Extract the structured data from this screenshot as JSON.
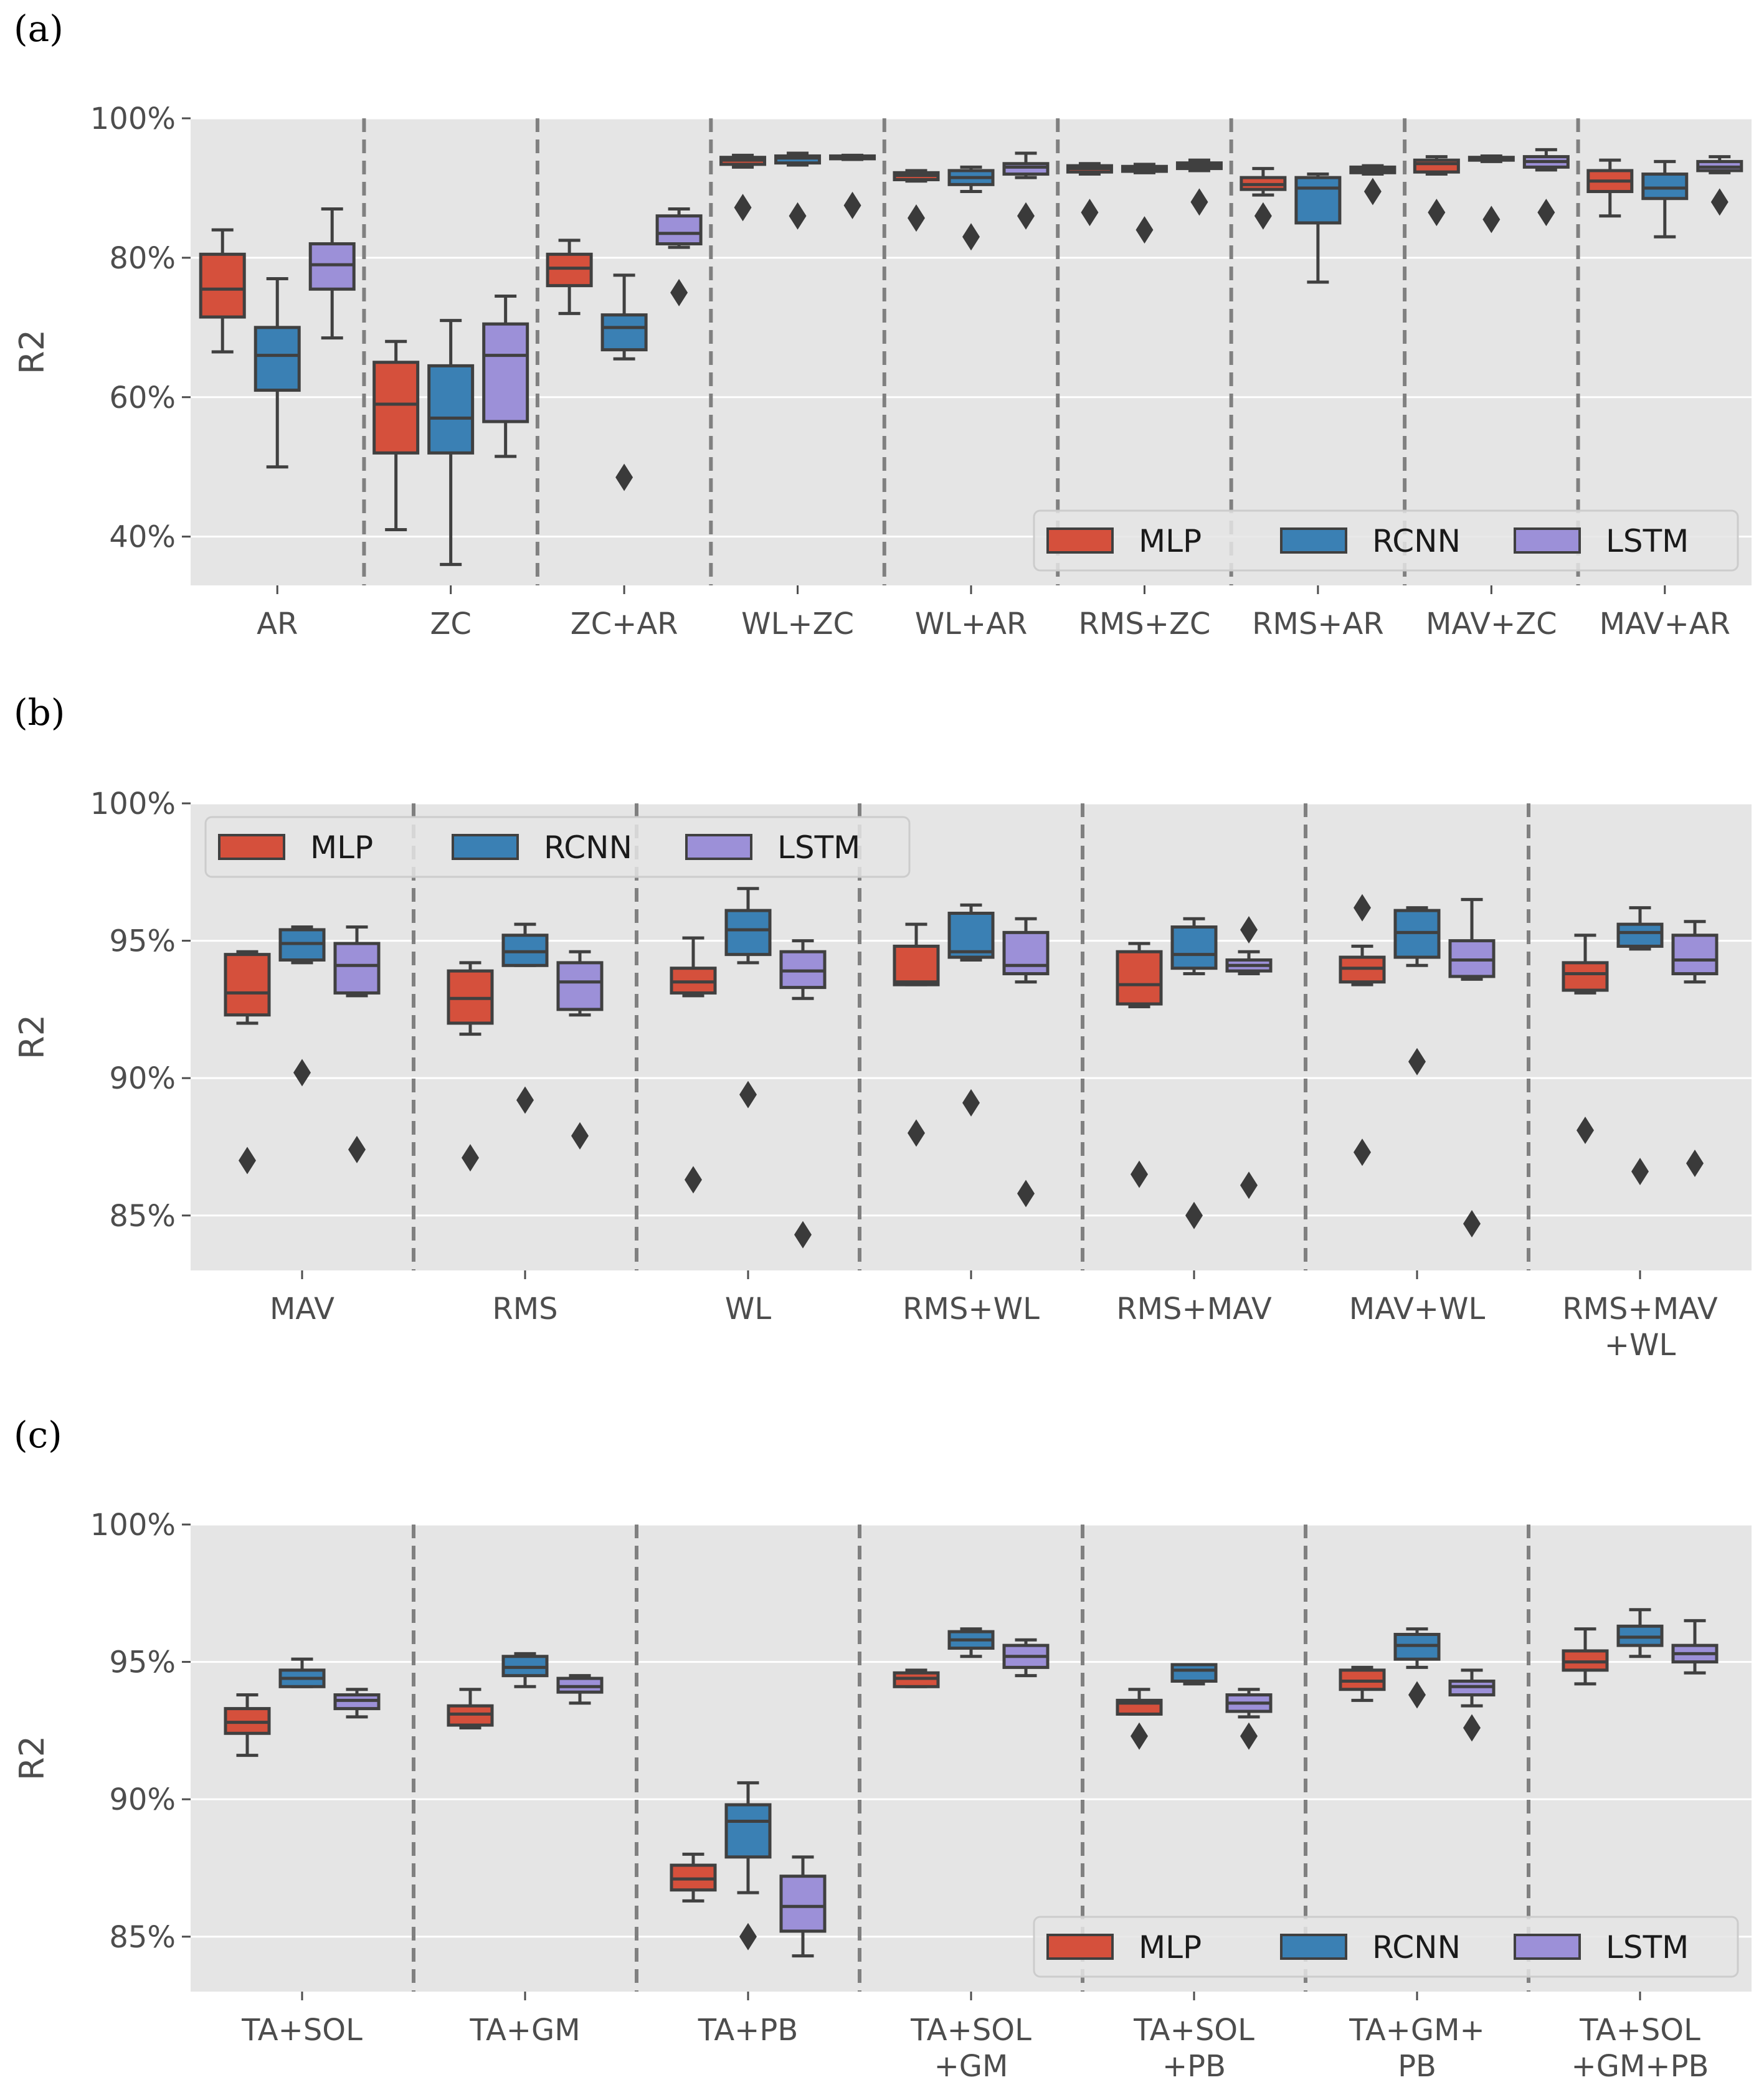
{
  "colors": {
    "MLP": "#d5503c",
    "RCNN": "#3a80b4",
    "LSTM": "#9c90d8",
    "background": "#e5e5e5",
    "grid": "#ffffff",
    "whisker": "#404040",
    "separator": "#808080"
  },
  "chart_data": [
    {
      "panel": "(a)",
      "type": "box",
      "ylabel": "R2",
      "ylim": [
        33,
        100
      ],
      "yticks": [
        40,
        60,
        80,
        100
      ],
      "ytick_labels": [
        "40%",
        "60%",
        "80%",
        "100%"
      ],
      "legend": [
        "MLP",
        "RCNN",
        "LSTM"
      ],
      "legend_position": "lower-right",
      "categories": [
        "AR",
        "ZC",
        "ZC+AR",
        "WL+ZC",
        "WL+AR",
        "RMS+ZC",
        "RMS+AR",
        "MAV+ZC",
        "MAV+AR"
      ],
      "series": [
        {
          "name": "MLP",
          "boxes": [
            {
              "whislo": 66.5,
              "q1": 71.5,
              "med": 75.5,
              "q3": 80.5,
              "whishi": 84,
              "fliers": []
            },
            {
              "whislo": 41,
              "q1": 52,
              "med": 59,
              "q3": 65,
              "whishi": 68,
              "fliers": []
            },
            {
              "whislo": 72,
              "q1": 76,
              "med": 78.5,
              "q3": 80.5,
              "whishi": 82.5,
              "fliers": []
            },
            {
              "whislo": 93,
              "q1": 93.4,
              "med": 94,
              "q3": 94.4,
              "whishi": 94.7,
              "fliers": [
                87.2
              ]
            },
            {
              "whislo": 91,
              "q1": 91.2,
              "med": 91.8,
              "q3": 92.2,
              "whishi": 92.5,
              "fliers": [
                85.7
              ]
            },
            {
              "whislo": 92,
              "q1": 92.3,
              "med": 92.8,
              "q3": 93.2,
              "whishi": 93.5,
              "fliers": [
                86.5
              ]
            },
            {
              "whislo": 89,
              "q1": 89.8,
              "med": 90.5,
              "q3": 91.5,
              "whishi": 92.8,
              "fliers": [
                86
              ]
            },
            {
              "whislo": 92,
              "q1": 92.3,
              "med": 93.5,
              "q3": 94,
              "whishi": 94.5,
              "fliers": [
                86.5
              ]
            },
            {
              "whislo": 86,
              "q1": 89.5,
              "med": 91,
              "q3": 92.5,
              "whishi": 94,
              "fliers": []
            }
          ]
        },
        {
          "name": "RCNN",
          "boxes": [
            {
              "whislo": 50,
              "q1": 61,
              "med": 66,
              "q3": 70,
              "whishi": 77,
              "fliers": []
            },
            {
              "whislo": 36,
              "q1": 52,
              "med": 57,
              "q3": 64.5,
              "whishi": 71,
              "fliers": []
            },
            {
              "whislo": 65.5,
              "q1": 66.8,
              "med": 70,
              "q3": 71.8,
              "whishi": 77.5,
              "fliers": [
                48.5
              ]
            },
            {
              "whislo": 93.3,
              "q1": 93.6,
              "med": 94.3,
              "q3": 94.6,
              "whishi": 95,
              "fliers": [
                86
              ]
            },
            {
              "whislo": 89.5,
              "q1": 90.5,
              "med": 91.5,
              "q3": 92.5,
              "whishi": 93,
              "fliers": [
                83
              ]
            },
            {
              "whislo": 92.2,
              "q1": 92.4,
              "med": 92.8,
              "q3": 93.1,
              "whishi": 93.4,
              "fliers": [
                84
              ]
            },
            {
              "whislo": 76.5,
              "q1": 85,
              "med": 90,
              "q3": 91.5,
              "whishi": 92,
              "fliers": []
            },
            {
              "whislo": 93.8,
              "q1": 94,
              "med": 94.2,
              "q3": 94.4,
              "whishi": 94.6,
              "fliers": [
                85.5
              ]
            },
            {
              "whislo": 83,
              "q1": 88.5,
              "med": 90,
              "q3": 92,
              "whishi": 93.8,
              "fliers": []
            }
          ]
        },
        {
          "name": "LSTM",
          "boxes": [
            {
              "whislo": 68.5,
              "q1": 75.5,
              "med": 79,
              "q3": 82,
              "whishi": 87,
              "fliers": []
            },
            {
              "whislo": 51.5,
              "q1": 56.5,
              "med": 66,
              "q3": 70.5,
              "whishi": 74.5,
              "fliers": []
            },
            {
              "whislo": 81.5,
              "q1": 82,
              "med": 83.5,
              "q3": 86,
              "whishi": 87,
              "fliers": [
                75
              ]
            },
            {
              "whislo": 94.1,
              "q1": 94.2,
              "med": 94.4,
              "q3": 94.6,
              "whishi": 94.7,
              "fliers": [
                87.5
              ]
            },
            {
              "whislo": 91.5,
              "q1": 92,
              "med": 93,
              "q3": 93.5,
              "whishi": 95,
              "fliers": [
                86
              ]
            },
            {
              "whislo": 92.5,
              "q1": 92.8,
              "med": 93.2,
              "q3": 93.6,
              "whishi": 94,
              "fliers": [
                88
              ]
            },
            {
              "whislo": 92,
              "q1": 92.2,
              "med": 92.6,
              "q3": 93,
              "whishi": 93.2,
              "fliers": [
                89.5
              ]
            },
            {
              "whislo": 92.6,
              "q1": 93,
              "med": 93.8,
              "q3": 94.5,
              "whishi": 95.5,
              "fliers": [
                86.5
              ]
            },
            {
              "whislo": 92.2,
              "q1": 92.5,
              "med": 93,
              "q3": 93.8,
              "whishi": 94.5,
              "fliers": [
                88
              ]
            }
          ]
        }
      ]
    },
    {
      "panel": "(b)",
      "type": "box",
      "ylabel": "R2",
      "ylim": [
        83,
        100
      ],
      "yticks": [
        85,
        90,
        95,
        100
      ],
      "ytick_labels": [
        "85%",
        "90%",
        "95%",
        "100%"
      ],
      "legend": [
        "MLP",
        "RCNN",
        "LSTM"
      ],
      "legend_position": "upper-left",
      "categories": [
        "MAV",
        "RMS",
        "WL",
        "RMS+WL",
        "RMS+MAV",
        "MAV+WL",
        "RMS+MAV\n+WL"
      ],
      "series": [
        {
          "name": "MLP",
          "boxes": [
            {
              "whislo": 92,
              "q1": 92.3,
              "med": 93.1,
              "q3": 94.5,
              "whishi": 94.6,
              "fliers": [
                87
              ]
            },
            {
              "whislo": 91.6,
              "q1": 92,
              "med": 92.9,
              "q3": 93.9,
              "whishi": 94.2,
              "fliers": [
                87.1
              ]
            },
            {
              "whislo": 93,
              "q1": 93.1,
              "med": 93.5,
              "q3": 94,
              "whishi": 95.1,
              "fliers": [
                86.3
              ]
            },
            {
              "whislo": 93.4,
              "q1": 93.4,
              "med": 93.5,
              "q3": 94.8,
              "whishi": 95.6,
              "fliers": [
                88
              ]
            },
            {
              "whislo": 92.6,
              "q1": 92.7,
              "med": 93.4,
              "q3": 94.6,
              "whishi": 94.9,
              "fliers": [
                86.5
              ]
            },
            {
              "whislo": 93.4,
              "q1": 93.5,
              "med": 94,
              "q3": 94.4,
              "whishi": 94.8,
              "fliers": [
                96.2,
                87.3
              ]
            },
            {
              "whislo": 93.1,
              "q1": 93.2,
              "med": 93.8,
              "q3": 94.2,
              "whishi": 95.2,
              "fliers": [
                88.1
              ]
            }
          ]
        },
        {
          "name": "RCNN",
          "boxes": [
            {
              "whislo": 94.2,
              "q1": 94.3,
              "med": 94.9,
              "q3": 95.4,
              "whishi": 95.5,
              "fliers": [
                90.2
              ]
            },
            {
              "whislo": 94.1,
              "q1": 94.1,
              "med": 94.6,
              "q3": 95.2,
              "whishi": 95.6,
              "fliers": [
                89.2
              ]
            },
            {
              "whislo": 94.2,
              "q1": 94.5,
              "med": 95.4,
              "q3": 96.1,
              "whishi": 96.9,
              "fliers": [
                89.4
              ]
            },
            {
              "whislo": 94.3,
              "q1": 94.4,
              "med": 94.6,
              "q3": 96,
              "whishi": 96.3,
              "fliers": [
                89.1
              ]
            },
            {
              "whislo": 93.8,
              "q1": 94,
              "med": 94.5,
              "q3": 95.5,
              "whishi": 95.8,
              "fliers": [
                85
              ]
            },
            {
              "whislo": 94.1,
              "q1": 94.4,
              "med": 95.3,
              "q3": 96.1,
              "whishi": 96.2,
              "fliers": [
                90.6
              ]
            },
            {
              "whislo": 94.7,
              "q1": 94.8,
              "med": 95.3,
              "q3": 95.6,
              "whishi": 96.2,
              "fliers": [
                86.6
              ]
            }
          ]
        },
        {
          "name": "LSTM",
          "boxes": [
            {
              "whislo": 93,
              "q1": 93.1,
              "med": 94.1,
              "q3": 94.9,
              "whishi": 95.5,
              "fliers": [
                87.4
              ]
            },
            {
              "whislo": 92.3,
              "q1": 92.5,
              "med": 93.5,
              "q3": 94.2,
              "whishi": 94.6,
              "fliers": [
                87.9
              ]
            },
            {
              "whislo": 92.9,
              "q1": 93.3,
              "med": 93.9,
              "q3": 94.6,
              "whishi": 95,
              "fliers": [
                84.3
              ]
            },
            {
              "whislo": 93.5,
              "q1": 93.8,
              "med": 94.1,
              "q3": 95.3,
              "whishi": 95.8,
              "fliers": [
                85.8
              ]
            },
            {
              "whislo": 93.8,
              "q1": 93.9,
              "med": 94.1,
              "q3": 94.3,
              "whishi": 94.6,
              "fliers": [
                95.4,
                86.1
              ]
            },
            {
              "whislo": 93.6,
              "q1": 93.7,
              "med": 94.3,
              "q3": 95,
              "whishi": 96.5,
              "fliers": [
                84.7
              ]
            },
            {
              "whislo": 93.5,
              "q1": 93.8,
              "med": 94.3,
              "q3": 95.2,
              "whishi": 95.7,
              "fliers": [
                86.9
              ]
            }
          ]
        }
      ]
    },
    {
      "panel": "(c)",
      "type": "box",
      "ylabel": "R2",
      "ylim": [
        83,
        100
      ],
      "yticks": [
        85,
        90,
        95,
        100
      ],
      "ytick_labels": [
        "85%",
        "90%",
        "95%",
        "100%"
      ],
      "legend": [
        "MLP",
        "RCNN",
        "LSTM"
      ],
      "legend_position": "lower-right",
      "categories": [
        "TA+SOL",
        "TA+GM",
        "TA+PB",
        "TA+SOL\n+GM",
        "TA+SOL\n+PB",
        "TA+GM+\nPB",
        "TA+SOL\n+GM+PB"
      ],
      "series": [
        {
          "name": "MLP",
          "boxes": [
            {
              "whislo": 91.6,
              "q1": 92.4,
              "med": 92.8,
              "q3": 93.3,
              "whishi": 93.8,
              "fliers": []
            },
            {
              "whislo": 92.6,
              "q1": 92.7,
              "med": 93.1,
              "q3": 93.4,
              "whishi": 94,
              "fliers": []
            },
            {
              "whislo": 86.3,
              "q1": 86.7,
              "med": 87.1,
              "q3": 87.6,
              "whishi": 88,
              "fliers": []
            },
            {
              "whislo": 94.1,
              "q1": 94.1,
              "med": 94.4,
              "q3": 94.6,
              "whishi": 94.7,
              "fliers": []
            },
            {
              "whislo": 93.1,
              "q1": 93.1,
              "med": 93.5,
              "q3": 93.6,
              "whishi": 94,
              "fliers": [
                92.3
              ]
            },
            {
              "whislo": 93.6,
              "q1": 94,
              "med": 94.3,
              "q3": 94.7,
              "whishi": 94.8,
              "fliers": []
            },
            {
              "whislo": 94.2,
              "q1": 94.7,
              "med": 95,
              "q3": 95.4,
              "whishi": 96.2,
              "fliers": []
            }
          ]
        },
        {
          "name": "RCNN",
          "boxes": [
            {
              "whislo": 94.1,
              "q1": 94.1,
              "med": 94.4,
              "q3": 94.7,
              "whishi": 95.1,
              "fliers": []
            },
            {
              "whislo": 94.1,
              "q1": 94.5,
              "med": 94.8,
              "q3": 95.2,
              "whishi": 95.3,
              "fliers": []
            },
            {
              "whislo": 86.6,
              "q1": 87.9,
              "med": 89.2,
              "q3": 89.8,
              "whishi": 90.6,
              "fliers": [
                85
              ]
            },
            {
              "whislo": 95.2,
              "q1": 95.5,
              "med": 95.8,
              "q3": 96.1,
              "whishi": 96.2,
              "fliers": []
            },
            {
              "whislo": 94.2,
              "q1": 94.3,
              "med": 94.7,
              "q3": 94.9,
              "whishi": 94.9,
              "fliers": []
            },
            {
              "whislo": 94.8,
              "q1": 95.1,
              "med": 95.6,
              "q3": 96,
              "whishi": 96.2,
              "fliers": [
                93.8
              ]
            },
            {
              "whislo": 95.2,
              "q1": 95.6,
              "med": 95.9,
              "q3": 96.3,
              "whishi": 96.9,
              "fliers": []
            }
          ]
        },
        {
          "name": "LSTM",
          "boxes": [
            {
              "whislo": 93,
              "q1": 93.3,
              "med": 93.6,
              "q3": 93.8,
              "whishi": 94,
              "fliers": []
            },
            {
              "whislo": 93.5,
              "q1": 93.9,
              "med": 94.1,
              "q3": 94.4,
              "whishi": 94.5,
              "fliers": []
            },
            {
              "whislo": 84.3,
              "q1": 85.2,
              "med": 86.1,
              "q3": 87.2,
              "whishi": 87.9,
              "fliers": []
            },
            {
              "whislo": 94.5,
              "q1": 94.8,
              "med": 95.2,
              "q3": 95.6,
              "whishi": 95.8,
              "fliers": []
            },
            {
              "whislo": 93,
              "q1": 93.2,
              "med": 93.5,
              "q3": 93.8,
              "whishi": 94,
              "fliers": [
                92.3
              ]
            },
            {
              "whislo": 93.4,
              "q1": 93.8,
              "med": 94.1,
              "q3": 94.3,
              "whishi": 94.7,
              "fliers": [
                92.6
              ]
            },
            {
              "whislo": 94.6,
              "q1": 95,
              "med": 95.3,
              "q3": 95.6,
              "whishi": 96.5,
              "fliers": []
            }
          ]
        }
      ]
    }
  ]
}
